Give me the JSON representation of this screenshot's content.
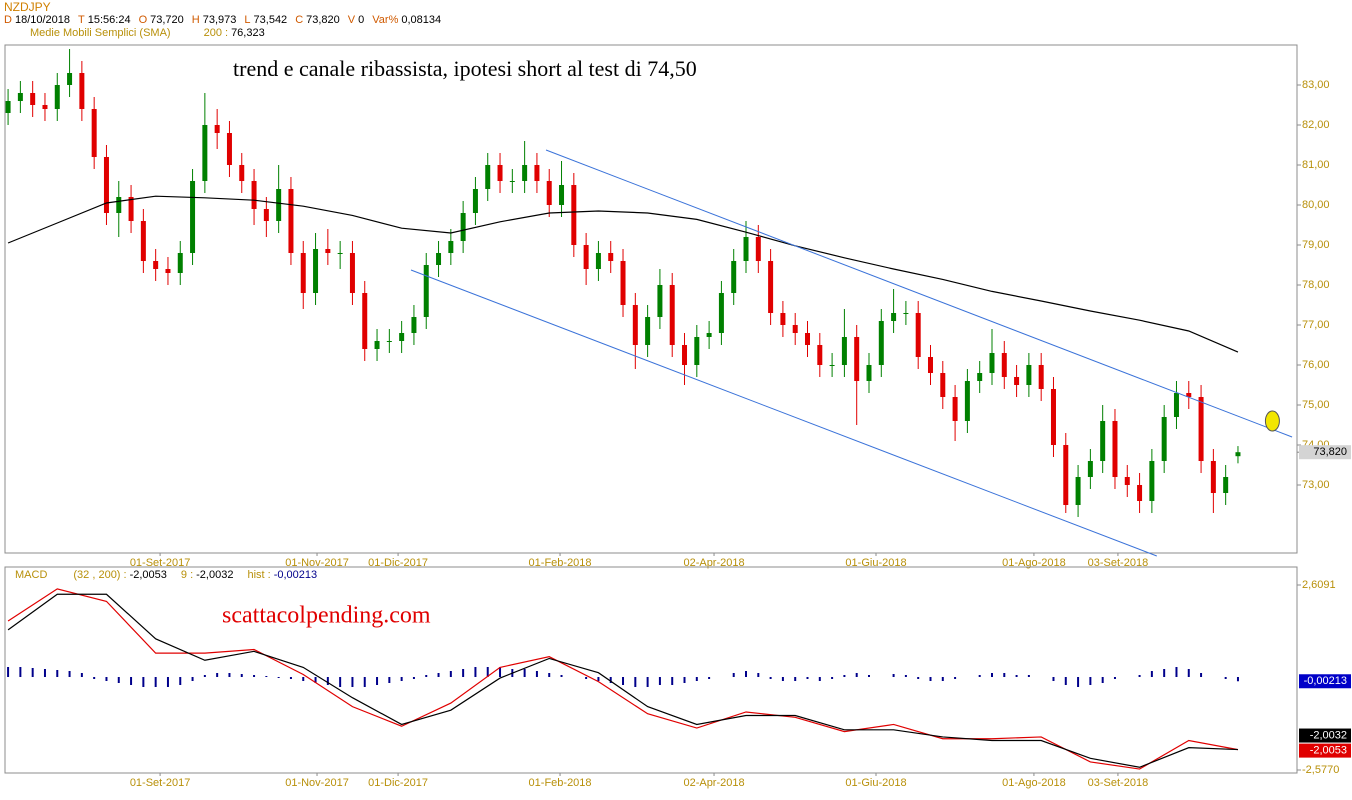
{
  "chart_data": [
    {
      "type": "candlestick",
      "title": "NZDJPY",
      "info": [
        {
          "key": "D",
          "value": "18/10/2018"
        },
        {
          "key": "T",
          "value": "15:56:24"
        },
        {
          "key": "O",
          "value": "73,720"
        },
        {
          "key": "H",
          "value": "73,973"
        },
        {
          "key": "L",
          "value": "73,542"
        },
        {
          "key": "C",
          "value": "73,820"
        },
        {
          "key": "V",
          "value": "0"
        },
        {
          "key": "Var%",
          "value": "0,08134"
        }
      ],
      "annotation": "trend e canale ribassista, ipotesi short al test di 74,50",
      "xlim": [
        -0.25,
        104.8
      ],
      "xticks": [
        {
          "value": 12.36,
          "label": "01-Set-2017"
        },
        {
          "value": 25.12,
          "label": "01-Nov-2017"
        },
        {
          "value": 31.71,
          "label": "01-Dic-2017"
        },
        {
          "value": 44.88,
          "label": "01-Feb-2018"
        },
        {
          "value": 57.4,
          "label": "02-Apr-2018"
        },
        {
          "value": 70.57,
          "label": "01-Giu-2018"
        },
        {
          "value": 83.41,
          "label": "01-Ago-2018"
        },
        {
          "value": 90.24,
          "label": "03-Set-2018"
        }
      ],
      "ylim": [
        71.3,
        84.0
      ],
      "yticks": [
        {
          "value": 73,
          "label": "73,00"
        },
        {
          "value": 74,
          "label": "74,00"
        },
        {
          "value": 75,
          "label": "75,00"
        },
        {
          "value": 76,
          "label": "76,00"
        },
        {
          "value": 77,
          "label": "77,00"
        },
        {
          "value": 78,
          "label": "78,00"
        },
        {
          "value": 79,
          "label": "79,00"
        },
        {
          "value": 80,
          "label": "80,00"
        },
        {
          "value": 81,
          "label": "81,00"
        },
        {
          "value": 82,
          "label": "82,00"
        },
        {
          "value": 83,
          "label": "83,00"
        }
      ],
      "grid": false,
      "candles": {
        "up_color": "#008000",
        "down_color": "#e00000",
        "open": [
          82.3,
          82.6,
          82.8,
          82.5,
          82.4,
          83.0,
          83.3,
          82.4,
          81.2,
          79.8,
          80.2,
          79.6,
          78.6,
          78.4,
          78.3,
          78.8,
          80.6,
          82.0,
          81.8,
          81.0,
          80.6,
          79.9,
          79.6,
          80.4,
          78.8,
          77.8,
          78.9,
          78.8,
          78.8,
          77.8,
          76.4,
          76.6,
          76.6,
          76.8,
          77.2,
          78.5,
          78.8,
          79.1,
          79.8,
          80.4,
          81.0,
          80.6,
          80.6,
          81.0,
          80.6,
          80.0,
          80.5,
          79.0,
          78.4,
          78.8,
          78.6,
          77.5,
          76.5,
          77.2,
          78.0,
          76.5,
          76.0,
          76.7,
          76.8,
          77.8,
          78.6,
          79.2,
          78.6,
          77.3,
          77.0,
          76.8,
          76.5,
          76.0,
          76.0,
          76.7,
          75.6,
          76.0,
          77.1,
          77.3,
          77.3,
          76.2,
          75.8,
          75.2,
          74.6,
          75.6,
          75.8,
          76.3,
          75.7,
          75.5,
          76.0,
          75.4,
          74.0,
          72.5,
          73.2,
          73.6,
          74.6,
          73.2,
          73.0,
          72.6,
          73.6,
          74.7,
          75.3,
          75.2,
          73.6,
          72.8,
          73.72
        ],
        "high": [
          82.9,
          83.1,
          83.1,
          82.8,
          83.3,
          83.9,
          83.6,
          82.7,
          81.5,
          80.6,
          80.5,
          79.9,
          78.9,
          78.7,
          79.1,
          80.9,
          82.8,
          82.4,
          82.1,
          81.3,
          80.9,
          80.2,
          81.0,
          80.7,
          79.1,
          79.3,
          79.4,
          79.1,
          79.1,
          78.1,
          76.9,
          76.9,
          77.1,
          77.5,
          78.8,
          79.1,
          79.4,
          80.1,
          80.7,
          81.3,
          81.3,
          80.9,
          81.6,
          81.3,
          80.9,
          81.1,
          80.8,
          79.3,
          79.1,
          79.1,
          78.9,
          77.8,
          77.5,
          78.4,
          78.3,
          76.8,
          77.0,
          77.1,
          78.1,
          78.9,
          79.6,
          79.5,
          78.9,
          77.6,
          77.3,
          77.1,
          76.8,
          76.3,
          77.4,
          77.0,
          76.3,
          77.4,
          77.9,
          77.6,
          77.6,
          76.5,
          76.1,
          75.5,
          75.9,
          76.1,
          76.9,
          76.6,
          76.0,
          76.3,
          76.3,
          75.7,
          74.3,
          73.5,
          73.9,
          75.0,
          74.9,
          73.5,
          73.3,
          73.9,
          75.0,
          75.6,
          75.6,
          75.5,
          73.9,
          73.5,
          73.973
        ],
        "low": [
          82.0,
          82.3,
          82.2,
          82.1,
          82.1,
          82.7,
          82.1,
          80.9,
          79.5,
          79.2,
          79.3,
          78.3,
          78.1,
          78.0,
          78.0,
          78.5,
          80.3,
          81.4,
          80.7,
          80.3,
          79.5,
          79.2,
          79.3,
          78.5,
          77.4,
          77.5,
          78.5,
          78.4,
          77.5,
          76.1,
          76.1,
          76.3,
          76.3,
          76.5,
          76.9,
          78.2,
          78.5,
          78.8,
          79.5,
          80.1,
          80.3,
          80.3,
          80.3,
          80.3,
          79.7,
          79.7,
          78.7,
          78.0,
          78.1,
          78.3,
          77.2,
          75.9,
          76.2,
          76.9,
          76.2,
          75.5,
          75.7,
          76.4,
          76.5,
          77.5,
          78.3,
          78.3,
          77.0,
          76.7,
          76.5,
          76.2,
          75.7,
          75.7,
          75.7,
          74.5,
          75.3,
          75.7,
          76.8,
          77.0,
          75.9,
          75.5,
          74.9,
          74.1,
          74.3,
          75.3,
          75.5,
          75.4,
          75.2,
          75.2,
          75.1,
          73.7,
          72.3,
          72.2,
          72.9,
          73.3,
          72.9,
          72.7,
          72.3,
          72.3,
          73.3,
          74.4,
          74.9,
          73.3,
          72.3,
          72.5,
          73.542
        ],
        "close": [
          82.6,
          82.8,
          82.5,
          82.4,
          83.0,
          83.3,
          82.4,
          81.2,
          79.8,
          80.2,
          79.6,
          78.6,
          78.4,
          78.3,
          78.8,
          80.6,
          82.0,
          81.8,
          81.0,
          80.6,
          79.9,
          79.6,
          80.4,
          78.8,
          77.8,
          78.9,
          78.8,
          78.8,
          77.8,
          76.4,
          76.6,
          76.6,
          76.8,
          77.2,
          78.5,
          78.8,
          79.1,
          79.8,
          80.4,
          81.0,
          80.6,
          80.6,
          81.0,
          80.6,
          80.0,
          80.5,
          79.0,
          78.4,
          78.8,
          78.6,
          77.5,
          76.5,
          77.2,
          78.0,
          76.5,
          76.0,
          76.7,
          76.8,
          77.8,
          78.6,
          79.2,
          78.6,
          77.3,
          77.0,
          76.8,
          76.5,
          76.0,
          76.0,
          76.7,
          75.6,
          76.0,
          77.1,
          77.3,
          77.3,
          76.2,
          75.8,
          75.2,
          74.6,
          75.6,
          75.8,
          76.3,
          75.7,
          75.5,
          76.0,
          75.4,
          74.0,
          72.5,
          73.2,
          73.6,
          74.6,
          73.2,
          73.0,
          72.6,
          73.6,
          74.7,
          75.3,
          75.2,
          73.6,
          72.8,
          73.2,
          73.82
        ]
      },
      "price_tag": {
        "value": 73.82,
        "label": "73,820"
      },
      "sma": {
        "name": "Medie Mobili Semplici (SMA)",
        "period_label": "200 :",
        "value_label": "76,323",
        "color": "#000000",
        "x": [
          0,
          4,
          8,
          12,
          16,
          20,
          24,
          28,
          32,
          36,
          40,
          44,
          48,
          52,
          56,
          60,
          64,
          68,
          72,
          76,
          80,
          84,
          88,
          92,
          96,
          100
        ],
        "values": [
          79.05,
          79.55,
          80.05,
          80.22,
          80.18,
          80.12,
          79.97,
          79.74,
          79.42,
          79.3,
          79.58,
          79.8,
          79.85,
          79.8,
          79.64,
          79.32,
          78.98,
          78.68,
          78.4,
          78.14,
          77.84,
          77.6,
          77.35,
          77.12,
          76.85,
          76.323
        ]
      },
      "channel": [
        {
          "color": "#3b73d9",
          "x": [
            43.74,
            104.4
          ],
          "y": [
            81.375,
            74.2
          ]
        },
        {
          "color": "#3b73d9",
          "x": [
            32.76,
            93.4
          ],
          "y": [
            78.375,
            71.225
          ]
        }
      ],
      "marker": {
        "x": 102.8,
        "y": 74.6,
        "color": "#f2e600"
      }
    },
    {
      "type": "macd",
      "title": "MACD",
      "annotation": "scattacolpending.com",
      "xlim": [
        -0.25,
        104.8
      ],
      "xticks": [
        {
          "value": 12.36,
          "label": "01-Set-2017"
        },
        {
          "value": 25.12,
          "label": "01-Nov-2017"
        },
        {
          "value": 31.71,
          "label": "01-Dic-2017"
        },
        {
          "value": 44.88,
          "label": "01-Feb-2018"
        },
        {
          "value": 57.4,
          "label": "02-Apr-2018"
        },
        {
          "value": 70.57,
          "label": "01-Giu-2018"
        },
        {
          "value": 83.41,
          "label": "01-Ago-2018"
        },
        {
          "value": 90.24,
          "label": "03-Set-2018"
        }
      ],
      "ylim": [
        -2.661,
        3.114
      ],
      "yticks": [
        {
          "value": 2.6091,
          "label": "2,6091"
        },
        {
          "value": -2.577,
          "label": "-2,5770"
        }
      ],
      "y2lim": [
        -0.048,
        0.055
      ],
      "series": [
        {
          "name": "(32 , 200) :",
          "color": "#e00000",
          "value_label": "-2,0053",
          "x": [
            0,
            4,
            8,
            12,
            16,
            20,
            24,
            28,
            32,
            36,
            40,
            44,
            48,
            52,
            56,
            60,
            64,
            68,
            72,
            76,
            80,
            84,
            88,
            92,
            96,
            100
          ],
          "values": [
            1.6,
            2.5,
            2.15,
            0.7,
            0.7,
            0.8,
            0.1,
            -0.8,
            -1.35,
            -0.7,
            0.3,
            0.6,
            -0.1,
            -1.0,
            -1.4,
            -0.95,
            -1.1,
            -1.5,
            -1.3,
            -1.7,
            -1.7,
            -1.65,
            -2.35,
            -2.55,
            -1.75,
            -2.0053
          ]
        },
        {
          "name": "9 :",
          "color": "#000000",
          "value_label": "-2,0032",
          "x": [
            0,
            4,
            8,
            12,
            16,
            20,
            24,
            28,
            32,
            36,
            40,
            44,
            48,
            52,
            56,
            60,
            64,
            68,
            72,
            76,
            80,
            84,
            88,
            92,
            96,
            100
          ],
          "values": [
            1.35,
            2.35,
            2.35,
            1.1,
            0.5,
            0.75,
            0.3,
            -0.55,
            -1.3,
            -0.9,
            0.0,
            0.55,
            0.15,
            -0.8,
            -1.3,
            -1.05,
            -1.05,
            -1.45,
            -1.45,
            -1.65,
            -1.75,
            -1.75,
            -2.25,
            -2.5,
            -1.95,
            -2.0032
          ]
        },
        {
          "name": "hist :",
          "color": "#00008b",
          "axis": "y2",
          "value_label": "-0,00213",
          "values": [
            0.005,
            0.005,
            0.0045,
            0.004,
            0.0035,
            0.003,
            0.002,
            -0.001,
            -0.002,
            -0.003,
            -0.004,
            -0.005,
            -0.005,
            -0.005,
            -0.004,
            -0.002,
            0.001,
            0.002,
            0.002,
            0.0015,
            0.001,
            0.0005,
            -0.0005,
            -0.001,
            -0.002,
            -0.003,
            -0.004,
            -0.005,
            -0.005,
            -0.005,
            -0.004,
            -0.003,
            -0.002,
            -0.001,
            0.001,
            0.002,
            0.003,
            0.004,
            0.005,
            0.005,
            0.005,
            0.004,
            0.004,
            0.003,
            0.002,
            0.001,
            0.0,
            -0.001,
            -0.002,
            -0.003,
            -0.004,
            -0.005,
            -0.005,
            -0.004,
            -0.004,
            -0.003,
            -0.002,
            -0.001,
            0.0,
            0.002,
            0.003,
            0.002,
            -0.001,
            -0.002,
            -0.002,
            -0.001,
            -0.002,
            -0.001,
            0.001,
            0.002,
            0.001,
            0.0,
            0.0015,
            0.001,
            -0.001,
            -0.002,
            -0.002,
            -0.001,
            0.0,
            0.001,
            0.002,
            0.002,
            0.001,
            0.001,
            0.0,
            -0.002,
            -0.004,
            -0.005,
            -0.004,
            -0.003,
            -0.001,
            0.0,
            0.001,
            0.003,
            0.004,
            0.005,
            0.004,
            0.002,
            0.0,
            -0.001,
            -0.00213
          ]
        }
      ]
    }
  ]
}
